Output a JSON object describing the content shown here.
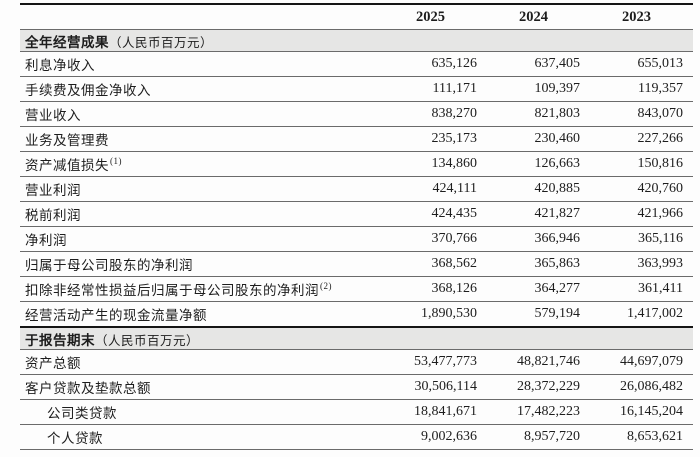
{
  "table": {
    "columns": [
      "2025",
      "2024",
      "2023"
    ],
    "sections": [
      {
        "title": "全年经营成果",
        "unit": "（人民币百万元）",
        "rows": [
          {
            "label": "利息净收入",
            "sup": "",
            "indent": false,
            "values": [
              "635,126",
              "637,405",
              "655,013"
            ]
          },
          {
            "label": "手续费及佣金净收入",
            "sup": "",
            "indent": false,
            "values": [
              "111,171",
              "109,397",
              "119,357"
            ]
          },
          {
            "label": "营业收入",
            "sup": "",
            "indent": false,
            "values": [
              "838,270",
              "821,803",
              "843,070"
            ]
          },
          {
            "label": "业务及管理费",
            "sup": "",
            "indent": false,
            "values": [
              "235,173",
              "230,460",
              "227,266"
            ]
          },
          {
            "label": "资产减值损失",
            "sup": "(1)",
            "indent": false,
            "values": [
              "134,860",
              "126,663",
              "150,816"
            ]
          },
          {
            "label": "营业利润",
            "sup": "",
            "indent": false,
            "values": [
              "424,111",
              "420,885",
              "420,760"
            ]
          },
          {
            "label": "税前利润",
            "sup": "",
            "indent": false,
            "values": [
              "424,435",
              "421,827",
              "421,966"
            ]
          },
          {
            "label": "净利润",
            "sup": "",
            "indent": false,
            "values": [
              "370,766",
              "366,946",
              "365,116"
            ]
          },
          {
            "label": "归属于母公司股东的净利润",
            "sup": "",
            "indent": false,
            "values": [
              "368,562",
              "365,863",
              "363,993"
            ]
          },
          {
            "label": "扣除非经常性损益后归属于母公司股东的净利润",
            "sup": "(2)",
            "indent": false,
            "values": [
              "368,126",
              "364,277",
              "361,411"
            ]
          },
          {
            "label": "经营活动产生的现金流量净额",
            "sup": "",
            "indent": false,
            "values": [
              "1,890,530",
              "579,194",
              "1,417,002"
            ]
          }
        ]
      },
      {
        "title": "于报告期末",
        "unit": "（人民币百万元）",
        "rows": [
          {
            "label": "资产总额",
            "sup": "",
            "indent": false,
            "values": [
              "53,477,773",
              "48,821,746",
              "44,697,079"
            ]
          },
          {
            "label": "客户贷款及垫款总额",
            "sup": "",
            "indent": false,
            "values": [
              "30,506,114",
              "28,372,229",
              "26,086,482"
            ]
          },
          {
            "label": "公司类贷款",
            "sup": "",
            "indent": true,
            "values": [
              "18,841,671",
              "17,482,223",
              "16,145,204"
            ]
          },
          {
            "label": "个人贷款",
            "sup": "",
            "indent": true,
            "values": [
              "9,002,636",
              "8,957,720",
              "8,653,621"
            ]
          }
        ]
      }
    ],
    "colors": {
      "section_band": "#e6e6e5",
      "rule_thin": "#6b6b6b",
      "rule_thick": "#151515",
      "text": "#1d1d1d",
      "background": "#fdfdfd"
    }
  }
}
